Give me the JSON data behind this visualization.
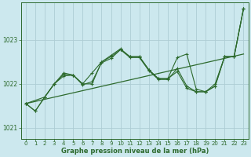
{
  "background_color": "#cce8ee",
  "grid_color": "#aecdd4",
  "line_color": "#2d6a2d",
  "title": "Graphe pression niveau de la mer (hPa)",
  "xlim": [
    -0.5,
    23.5
  ],
  "ylim": [
    1020.75,
    1023.85
  ],
  "yticks": [
    1021,
    1022,
    1023
  ],
  "xticks": [
    0,
    1,
    2,
    3,
    4,
    5,
    6,
    7,
    8,
    9,
    10,
    11,
    12,
    13,
    14,
    15,
    16,
    17,
    18,
    19,
    20,
    21,
    22,
    23
  ],
  "series1": {
    "x": [
      0,
      1,
      2,
      3,
      4,
      5,
      6,
      7,
      8,
      9,
      10,
      11,
      12,
      13,
      14,
      15,
      16,
      17,
      18,
      19,
      20,
      21,
      22,
      23
    ],
    "y": [
      1021.55,
      1021.38,
      1021.7,
      1022.0,
      1022.25,
      1022.2,
      1022.0,
      1022.25,
      1022.5,
      1022.65,
      1022.8,
      1022.62,
      1022.62,
      1022.32,
      1022.12,
      1022.12,
      1022.28,
      1021.9,
      1021.82,
      1021.82,
      1021.95,
      1022.62,
      1022.62,
      1023.72
    ]
  },
  "series2": {
    "x": [
      0,
      1,
      2,
      3,
      4,
      5,
      6,
      7,
      8,
      9,
      10,
      11,
      12,
      13,
      14,
      15,
      16,
      17,
      18,
      19,
      20,
      21,
      22,
      23
    ],
    "y": [
      1021.55,
      1021.38,
      1021.7,
      1022.0,
      1022.22,
      1022.2,
      1022.0,
      1022.0,
      1022.5,
      1022.62,
      1022.78,
      1022.62,
      1022.62,
      1022.32,
      1022.12,
      1022.12,
      1022.6,
      1022.68,
      1021.88,
      1021.82,
      1022.0,
      1022.62,
      1022.62,
      1023.72
    ]
  },
  "series3": {
    "x": [
      0,
      2,
      3,
      4,
      5,
      6,
      7,
      8,
      9,
      10,
      11,
      12,
      13,
      14,
      15,
      16,
      17,
      18,
      19,
      20,
      21,
      22,
      23
    ],
    "y": [
      1021.55,
      1021.7,
      1022.0,
      1022.18,
      1022.2,
      1021.98,
      1022.05,
      1022.48,
      1022.58,
      1022.78,
      1022.6,
      1022.6,
      1022.3,
      1022.1,
      1022.1,
      1022.35,
      1021.95,
      1021.82,
      1021.82,
      1021.95,
      1022.62,
      1022.62,
      1023.72
    ]
  },
  "trend_line": {
    "x": [
      0,
      23
    ],
    "y": [
      1021.55,
      1022.68
    ]
  }
}
